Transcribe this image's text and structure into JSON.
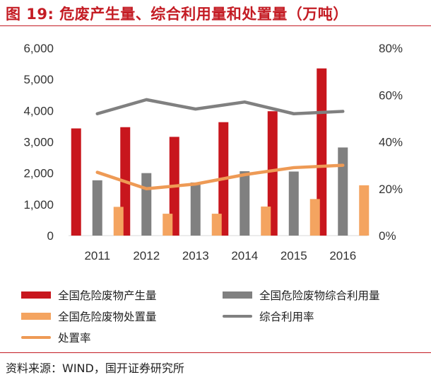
{
  "title": "图 19:  危废产生量、综合利用量和处置量（万吨）",
  "source": "资料来源：WIND，国开证券研究所",
  "colors": {
    "red": "#c8161d",
    "gray": "#808080",
    "orange": "#f4a460",
    "gray_line": "#808080",
    "orange_line": "#ee9a55",
    "title_red": "#c41c24"
  },
  "chart_data": {
    "type": "bar",
    "categories": [
      "2011",
      "2012",
      "2013",
      "2014",
      "2015",
      "2016"
    ],
    "series": [
      {
        "name": "全国危险废物产生量",
        "kind": "bar",
        "axis": "left",
        "color": "#c8161d",
        "values": [
          3430,
          3470,
          3160,
          3630,
          3980,
          5350
        ]
      },
      {
        "name": "全国危险废物综合利用量",
        "kind": "bar",
        "axis": "left",
        "color": "#808080",
        "values": [
          1770,
          2000,
          1700,
          2060,
          2050,
          2820
        ]
      },
      {
        "name": "全国危险废物处置量",
        "kind": "bar",
        "axis": "left",
        "color": "#f4a460",
        "values": [
          920,
          700,
          700,
          930,
          1170,
          1610
        ]
      },
      {
        "name": "综合利用率",
        "kind": "line",
        "axis": "right",
        "color": "#808080",
        "values": [
          52,
          58,
          54,
          57,
          52,
          53
        ]
      },
      {
        "name": "处置率",
        "kind": "line",
        "axis": "right",
        "color": "#ee9a55",
        "values": [
          27,
          20,
          22,
          26,
          29,
          30
        ]
      }
    ],
    "y_left": {
      "min": 0,
      "max": 6000,
      "ticks": [
        "0",
        "1,000",
        "2,000",
        "3,000",
        "4,000",
        "5,000",
        "6,000"
      ]
    },
    "y_right": {
      "min": 0,
      "max": 80,
      "ticks": [
        "0%",
        "20%",
        "40%",
        "60%",
        "80%"
      ]
    },
    "grid": false,
    "legend_position": "bottom"
  }
}
